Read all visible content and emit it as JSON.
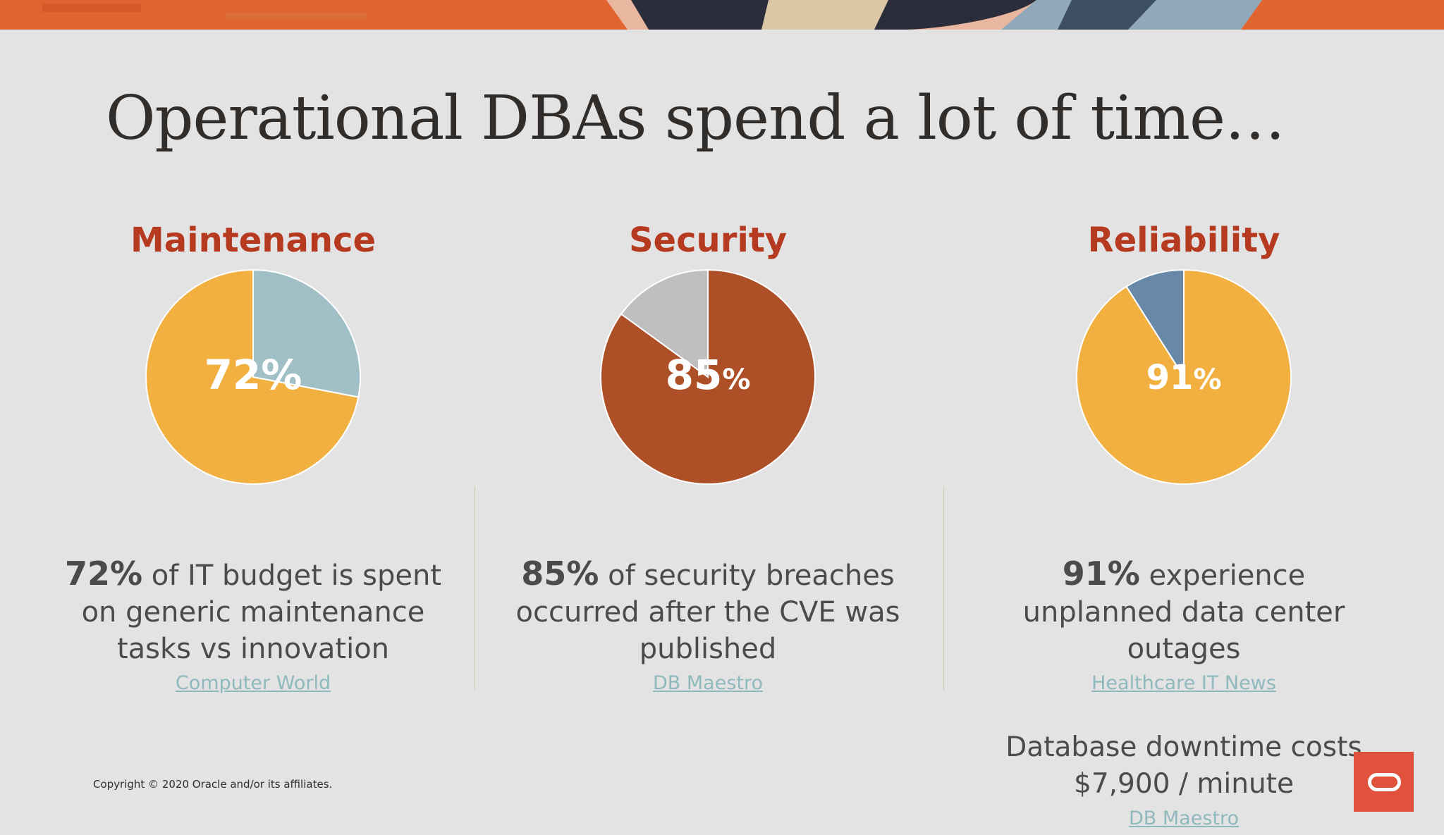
{
  "slide": {
    "title": "Operational DBAs spend a lot of time…",
    "copyright": "Copyright © 2020 Oracle and/or its affiliates."
  },
  "columns": [
    {
      "heading": "Maintenance",
      "pie_value": "72",
      "pie_unit": "%",
      "stat": "72%",
      "caption_rest": " of IT budget is spent on generic maintenance tasks vs innovation",
      "source": "Computer World"
    },
    {
      "heading": "Security",
      "pie_value": "85",
      "pie_unit": "%",
      "stat": "85%",
      "caption_rest": " of security breaches occurred after the CVE was published",
      "source": "DB Maestro"
    },
    {
      "heading": "Reliability",
      "pie_value": "91",
      "pie_unit": "%",
      "stat": "91%",
      "caption_rest": " experience unplanned data center outages",
      "source": "Healthcare IT News",
      "extra_text": "Database downtime costs $7,900 / minute",
      "extra_source": "DB Maestro"
    }
  ],
  "chart_data": [
    {
      "type": "pie",
      "title": "Maintenance",
      "values": [
        72,
        28
      ],
      "colors": [
        "#f2b040",
        "#a0bfc6"
      ]
    },
    {
      "type": "pie",
      "title": "Security",
      "values": [
        85,
        15
      ],
      "colors": [
        "#ad4f27",
        "#c0bfc0"
      ]
    },
    {
      "type": "pie",
      "title": "Reliability",
      "values": [
        91,
        9
      ],
      "colors": [
        "#f2b040",
        "#6788a6"
      ]
    }
  ],
  "brand": {
    "accent": "#e0523c",
    "heading_color": "#b63a1f",
    "logo_icon": "oracle-logo-icon"
  }
}
